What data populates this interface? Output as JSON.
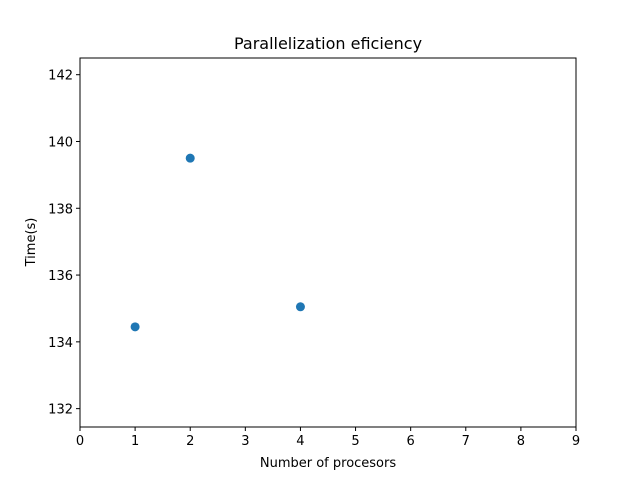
{
  "chart_data": {
    "type": "scatter",
    "title": "Parallelization eficiency",
    "xlabel": "Number of procesors",
    "ylabel": "Time(s)",
    "xlim": [
      0,
      9
    ],
    "ylim": [
      131.45,
      142.5
    ],
    "xticks": [
      "0",
      "1",
      "2",
      "3",
      "4",
      "5",
      "6",
      "7",
      "8",
      "9"
    ],
    "yticks": [
      "132",
      "134",
      "136",
      "138",
      "140",
      "142"
    ],
    "grid": false,
    "series": [
      {
        "color": "#1f77b4",
        "points": [
          {
            "x": 1,
            "y": 134.45
          },
          {
            "x": 2,
            "y": 139.5
          },
          {
            "x": 4,
            "y": 135.05
          }
        ]
      }
    ]
  }
}
